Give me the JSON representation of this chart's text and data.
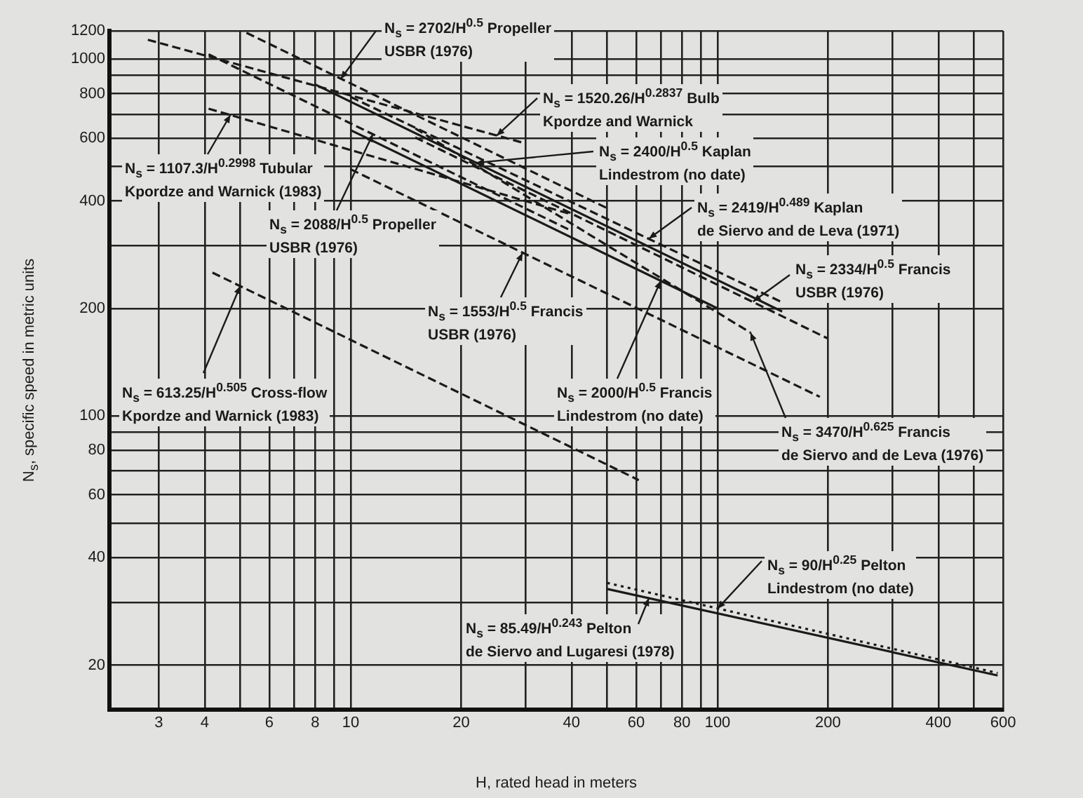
{
  "chart_data": {
    "type": "line",
    "xlabel": "H, rated head in meters",
    "ylabel": "N$_{s}$, specific speed in metric units",
    "log": "xy",
    "grid": true,
    "legend": false,
    "marker": "none",
    "xlim": [
      2.2,
      600
    ],
    "ylim": [
      15,
      1200
    ],
    "xticks": [
      3,
      4,
      {
        "value": 5,
        "label": null
      },
      6,
      {
        "value": 7,
        "label": null
      },
      8,
      {
        "value": 9,
        "label": null
      },
      10,
      20,
      {
        "value": 30,
        "label": null
      },
      40,
      {
        "value": 50,
        "label": null
      },
      60,
      {
        "value": 70,
        "label": null
      },
      80,
      {
        "value": 90,
        "label": null
      },
      100,
      200,
      {
        "value": 300,
        "label": null
      },
      400,
      {
        "value": 500,
        "label": null
      },
      600
    ],
    "yticks": [
      20,
      {
        "value": 30,
        "label": null
      },
      40,
      {
        "value": 50,
        "label": null
      },
      60,
      {
        "value": 70,
        "label": null
      },
      80,
      {
        "value": 90,
        "label": null
      },
      100,
      200,
      {
        "value": 300,
        "label": null
      },
      400,
      {
        "value": 500,
        "label": null
      },
      600,
      {
        "value": 700,
        "label": null
      },
      800,
      {
        "value": 900,
        "label": null
      },
      1000,
      1200
    ],
    "series": [
      {
        "color": "#1a1a1a",
        "line_style": "dashed",
        "x": [
          5.2,
          50
        ],
        "values": [
          1185,
          382
        ]
      },
      {
        "color": "#1a1a1a",
        "line_style": "dashed",
        "x": [
          2.8,
          30
        ],
        "values": [
          1133,
          580
        ]
      },
      {
        "color": "#1a1a1a",
        "line_style": "dashed",
        "x": [
          4.1,
          40
        ],
        "values": [
          726,
          367
        ]
      },
      {
        "color": "#1a1a1a",
        "line_style": "dashed",
        "x": [
          4.1,
          40
        ],
        "values": [
          1031,
          330
        ]
      },
      {
        "color": "#1a1a1a",
        "line_style": "solid",
        "x": [
          8,
          150
        ],
        "values": [
          849,
          196
        ]
      },
      {
        "color": "#1a1a1a",
        "line_style": "dashed",
        "x": [
          10,
          150
        ],
        "values": [
          783,
          208
        ]
      },
      {
        "color": "#1a1a1a",
        "line_style": "dashed",
        "x": [
          15,
          199
        ],
        "values": [
          603,
          165
        ]
      },
      {
        "color": "#1a1a1a",
        "line_style": "dashed",
        "x": [
          10,
          190
        ],
        "values": [
          491,
          113
        ]
      },
      {
        "color": "#1a1a1a",
        "line_style": "solid",
        "x": [
          10,
          100
        ],
        "values": [
          632,
          200
        ]
      },
      {
        "color": "#1a1a1a",
        "line_style": "dashed",
        "x": [
          15,
          123
        ],
        "values": [
          639,
          171
        ]
      },
      {
        "color": "#1a1a1a",
        "line_style": "dashed",
        "x": [
          4.2,
          61
        ],
        "values": [
          252,
          66
        ]
      },
      {
        "color": "#1a1a1a",
        "line_style": "dotted",
        "x": [
          50,
          580
        ],
        "values": [
          34,
          19
        ]
      },
      {
        "color": "#1a1a1a",
        "line_style": "solid",
        "x": [
          50,
          580
        ],
        "values": [
          32.7,
          18.7
        ]
      }
    ],
    "annotations": [
      {
        "text": "N$_{s}$ = 2702/H$^{0.5}$ Propeller\nUSBR (1976)",
        "x": 9.4,
        "y": 880
      },
      {
        "text": "N$_{s}$ = 1520.26/H$^{0.2837}$ Bulb\nKpordze and Warnick",
        "x": 25,
        "y": 610
      },
      {
        "text": "N$_{s}$ = 2400/H$^{0.5}$ Kaplan\nLindestrom (no date)",
        "x": 22,
        "y": 512
      },
      {
        "text": "N$_{s}$ = 1107.3/H$^{0.2998}$ Tubular\nKpordze and Warnick (1983)",
        "x": 4.7,
        "y": 697
      },
      {
        "text": "N$_{s}$ = 2088/H$^{0.5}$ Propeller\nUSBR (1976)",
        "x": 11.5,
        "y": 616
      },
      {
        "text": "N$_{s}$ = 2419/H$^{0.489}$ Kaplan\nde Siervo and de Leva (1971)",
        "x": 65,
        "y": 314
      },
      {
        "text": "N$_{s}$ = 2334/H$^{0.5}$ Francis\nUSBR (1976)",
        "x": 125,
        "y": 209
      },
      {
        "text": "N$_{s}$ = 1553/H$^{0.5}$ Francis\nUSBR (1976)",
        "x": 29.4,
        "y": 286
      },
      {
        "text": "N$_{s}$ = 613.25/H$^{0.505}$ Cross-flow\nKpordze and Warnick (1983)",
        "x": 5,
        "y": 231
      },
      {
        "text": "N$_{s}$ = 2000/H$^{0.5}$ Francis\nLindestrom (no date)",
        "x": 70,
        "y": 239
      },
      {
        "text": "N$_{s}$ = 3470/H$^{0.625}$ Francis\nde Siervo and de Leva (1976)",
        "x": 123,
        "y": 171
      },
      {
        "text": "N$_{s}$ = 90/H$^{0.25}$ Pelton\nLindestrom (no date)",
        "x": 100,
        "y": 28.8
      },
      {
        "text": "N$_{s}$ = 85.49/H$^{0.243}$ Pelton\nde Siervo and Lugaresi (1978)",
        "x": 65,
        "y": 30.8
      }
    ]
  }
}
